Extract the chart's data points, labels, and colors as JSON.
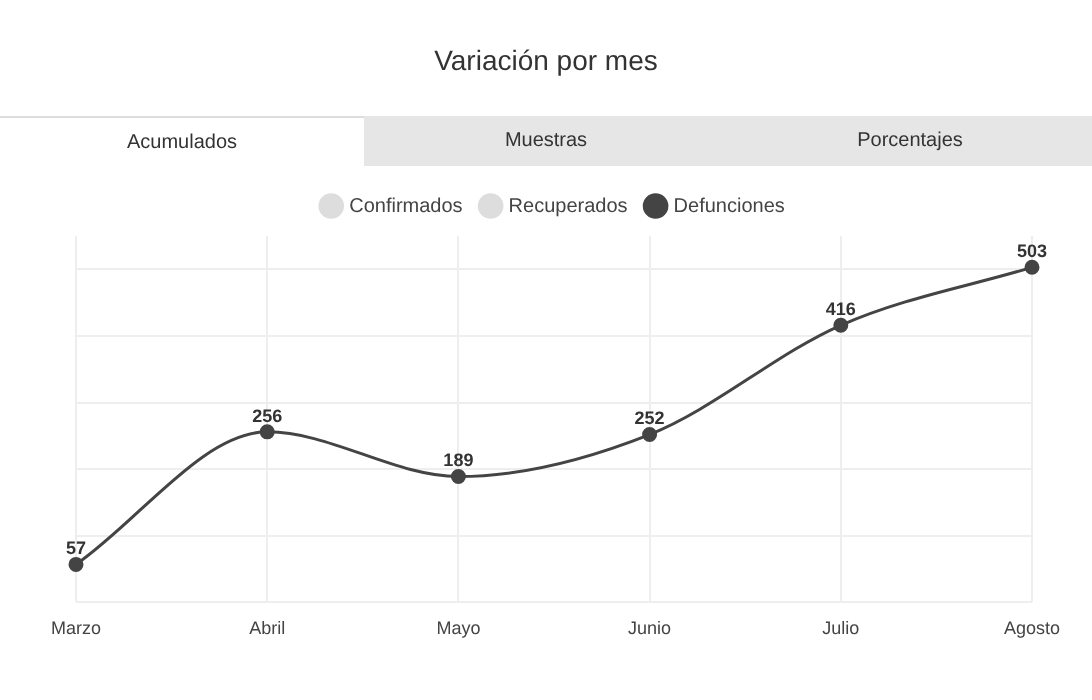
{
  "chart_data": {
    "type": "line",
    "title": "Variación por mes",
    "annotations": [
      "Acumulados",
      "Muestras",
      "Porcentajes"
    ],
    "categories": [
      "Marzo",
      "Abril",
      "Mayo",
      "Junio",
      "Julio",
      "Agosto"
    ],
    "series": [
      {
        "name": "Confirmados",
        "color": "#dddddd",
        "values": [
          null,
          null,
          null,
          null,
          null,
          null
        ]
      },
      {
        "name": "Recuperados",
        "color": "#dddddd",
        "values": [
          null,
          null,
          null,
          null,
          null,
          null
        ]
      },
      {
        "name": "Defunciones",
        "color": "#444444",
        "values": [
          57,
          256,
          189,
          252,
          416,
          503
        ]
      }
    ],
    "ylim": [
      0,
      550
    ],
    "yticks": [
      {
        "value": 0,
        "label": null
      },
      {
        "value": 100,
        "label": null
      },
      {
        "value": 200,
        "label": null
      },
      {
        "value": 300,
        "label": null
      },
      {
        "value": 400,
        "label": null
      },
      {
        "value": 500,
        "label": null
      }
    ],
    "tick_labels": "x",
    "grid": true,
    "legend": "top",
    "marker": "circle",
    "line_style": "solid",
    "data_labels": true
  }
}
